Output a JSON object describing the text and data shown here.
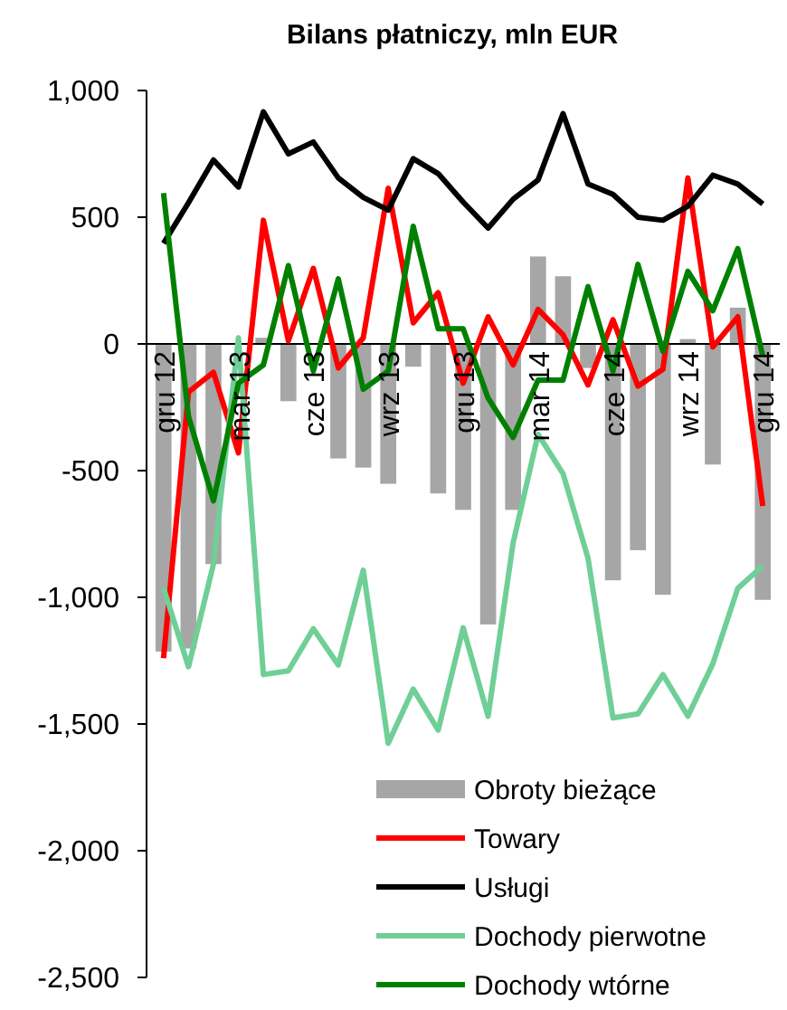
{
  "chart_data": {
    "type": "line",
    "title": "Bilans płatniczy, mln EUR",
    "categories": [
      "gru 12",
      null,
      null,
      "mar 13",
      null,
      null,
      "cze 13",
      null,
      null,
      "wrz 13",
      null,
      null,
      "gru 13",
      null,
      null,
      "mar 14",
      null,
      null,
      "cze 14",
      null,
      null,
      "wrz 14",
      null,
      null,
      "gru 14"
    ],
    "series": [
      {
        "name": "Obroty bieżące",
        "type": "bar",
        "color": "#a6a6a6",
        "values": [
          -1214,
          -1202,
          -869,
          0,
          24,
          -226,
          0,
          -452,
          -488,
          -552,
          -90,
          -590,
          -655,
          -1107,
          -655,
          345,
          267,
          -95,
          -933,
          -814,
          -990,
          19,
          -476,
          143,
          -1010
        ]
      },
      {
        "name": "Towary",
        "color": "#ff0000",
        "values": [
          -1240,
          -190,
          -112,
          -430,
          488,
          12,
          298,
          -95,
          24,
          614,
          83,
          202,
          -155,
          107,
          -83,
          136,
          36,
          -162,
          95,
          -167,
          -100,
          655,
          -12,
          107,
          -640
        ]
      },
      {
        "name": "Usługi",
        "color": "#000000",
        "values": [
          397,
          557,
          726,
          619,
          916,
          750,
          797,
          655,
          578,
          528,
          731,
          672,
          560,
          457,
          571,
          647,
          909,
          631,
          590,
          500,
          488,
          543,
          666,
          631,
          552
        ]
      },
      {
        "name": "Dochody pierwotne",
        "color": "#6fcf97",
        "values": [
          -964,
          -1274,
          -869,
          24,
          -1305,
          -1290,
          -1124,
          -1267,
          -893,
          -1576,
          -1362,
          -1524,
          -1120,
          -1469,
          -786,
          -357,
          -512,
          -845,
          -1476,
          -1460,
          -1305,
          -1469,
          -1262,
          -964,
          -876
        ]
      },
      {
        "name": "Dochody wtórne",
        "color": "#008000",
        "values": [
          595,
          -286,
          -619,
          -155,
          -83,
          309,
          -107,
          257,
          -179,
          -107,
          464,
          60,
          60,
          -214,
          -369,
          -143,
          -143,
          226,
          -107,
          314,
          -29,
          286,
          131,
          376,
          -48
        ]
      }
    ],
    "ylim": [
      -2500,
      1000
    ],
    "yticks": [
      {
        "value": -2500,
        "label": "-2,500"
      },
      {
        "value": -2000,
        "label": "-2,000"
      },
      {
        "value": -1500,
        "label": "-1,500"
      },
      {
        "value": -1000,
        "label": "-1,000"
      },
      -500,
      0,
      500,
      {
        "value": 1000,
        "label": "1,000"
      }
    ],
    "legend": "bottom right",
    "marker": "none",
    "line_style": "solid"
  }
}
